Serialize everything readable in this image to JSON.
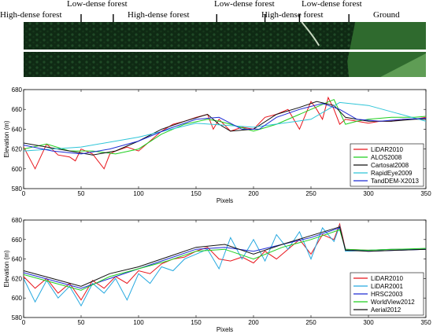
{
  "strip": {
    "labels": [
      {
        "text": "High-dense forest",
        "x": 0
      },
      {
        "text": "Low-dense forest",
        "x": 75
      },
      {
        "text": "High-dense forest",
        "x": 115
      },
      {
        "text": "Low-dense forest",
        "x": 168
      },
      {
        "text": "High-dense forest",
        "x": 218
      },
      {
        "text": "Low-dense forest",
        "x": 268
      },
      {
        "text": "Ground",
        "x": 300
      }
    ],
    "boundaries": [
      50,
      78,
      168,
      210,
      240,
      283
    ],
    "colors": {
      "forest": "#0f2a14",
      "forest_light": "#1f4a26",
      "ground": "#2f6a2e",
      "ground_light": "#5f9d55"
    }
  },
  "chart_data": [
    {
      "type": "line",
      "xlabel": "Pixels",
      "ylabel": "Elevation (m)",
      "xlim": [
        0,
        350
      ],
      "ylim": [
        580,
        680
      ],
      "xticks": [
        0,
        50,
        100,
        150,
        200,
        250,
        300,
        350
      ],
      "yticks": [
        580,
        600,
        620,
        640,
        660,
        680
      ],
      "legend": "bottom-right",
      "series": [
        {
          "name": "LiDAR2010",
          "color": "#e8141b",
          "x": [
            0,
            10,
            20,
            30,
            40,
            45,
            50,
            60,
            70,
            75,
            80,
            90,
            100,
            110,
            120,
            130,
            140,
            150,
            160,
            165,
            170,
            180,
            190,
            200,
            210,
            220,
            230,
            240,
            250,
            255,
            260,
            265,
            270,
            275,
            280,
            290,
            300,
            310,
            320,
            330,
            340,
            350
          ],
          "y": [
            622,
            600,
            625,
            614,
            612,
            608,
            620,
            615,
            600,
            615,
            618,
            622,
            618,
            628,
            638,
            645,
            648,
            652,
            655,
            640,
            650,
            638,
            642,
            640,
            652,
            655,
            660,
            640,
            668,
            660,
            650,
            672,
            660,
            645,
            650,
            648,
            646,
            648,
            648,
            650,
            650,
            652
          ]
        },
        {
          "name": "ALOS2008",
          "color": "#1fcf1f",
          "x": [
            0,
            20,
            40,
            60,
            80,
            100,
            120,
            140,
            160,
            170,
            180,
            200,
            220,
            240,
            260,
            270,
            280,
            290,
            300,
            320,
            340,
            350
          ],
          "y": [
            620,
            625,
            618,
            618,
            615,
            620,
            635,
            645,
            650,
            648,
            645,
            638,
            645,
            655,
            665,
            670,
            645,
            648,
            650,
            652,
            652,
            653
          ]
        },
        {
          "name": "Cartosat2008",
          "color": "#111111",
          "x": [
            0,
            20,
            40,
            60,
            80,
            100,
            120,
            140,
            160,
            170,
            180,
            200,
            220,
            240,
            255,
            270,
            280,
            300,
            320,
            340,
            350
          ],
          "y": [
            626,
            622,
            618,
            614,
            618,
            628,
            640,
            648,
            655,
            645,
            638,
            640,
            655,
            662,
            668,
            664,
            652,
            648,
            648,
            650,
            650
          ]
        },
        {
          "name": "RapidEye2009",
          "color": "#2ec5d8",
          "x": [
            0,
            50,
            100,
            150,
            200,
            250,
            275,
            300,
            325,
            350
          ],
          "y": [
            618,
            622,
            632,
            646,
            642,
            650,
            667,
            664,
            656,
            648
          ]
        },
        {
          "name": "TandDEM-X2013",
          "color": "#1d2bd4",
          "x": [
            0,
            25,
            50,
            75,
            100,
            125,
            150,
            170,
            190,
            205,
            220,
            240,
            260,
            275,
            290,
            310,
            330,
            350
          ],
          "y": [
            624,
            618,
            615,
            620,
            628,
            640,
            650,
            652,
            640,
            640,
            652,
            660,
            666,
            660,
            650,
            648,
            650,
            651
          ]
        }
      ]
    },
    {
      "type": "line",
      "xlabel": "Pixels",
      "ylabel": "Elevation (m)",
      "xlim": [
        0,
        350
      ],
      "ylim": [
        580,
        680
      ],
      "xticks": [
        0,
        50,
        100,
        150,
        200,
        250,
        300,
        350
      ],
      "yticks": [
        580,
        600,
        620,
        640,
        660,
        680
      ],
      "legend": "bottom-right",
      "series": [
        {
          "name": "LiDAR2010",
          "color": "#e8141b",
          "x": [
            0,
            10,
            20,
            30,
            40,
            50,
            60,
            70,
            80,
            90,
            100,
            110,
            120,
            130,
            140,
            150,
            160,
            170,
            180,
            190,
            200,
            210,
            220,
            230,
            240,
            250,
            260,
            270,
            275,
            280,
            300,
            320,
            350
          ],
          "y": [
            622,
            610,
            620,
            605,
            615,
            598,
            618,
            610,
            622,
            615,
            628,
            625,
            635,
            640,
            642,
            648,
            652,
            640,
            638,
            642,
            636,
            648,
            640,
            650,
            660,
            645,
            665,
            660,
            676,
            650,
            649,
            650,
            650
          ]
        },
        {
          "name": "LiDAR2001",
          "color": "#26a9e0",
          "x": [
            0,
            10,
            20,
            30,
            40,
            50,
            60,
            70,
            80,
            90,
            100,
            110,
            120,
            130,
            140,
            150,
            160,
            170,
            180,
            190,
            200,
            210,
            220,
            230,
            240,
            250,
            260,
            270,
            275,
            280,
            300,
            320,
            350
          ],
          "y": [
            620,
            596,
            618,
            600,
            612,
            592,
            615,
            605,
            620,
            598,
            625,
            615,
            632,
            628,
            640,
            645,
            650,
            630,
            662,
            640,
            660,
            638,
            665,
            650,
            668,
            640,
            672,
            658,
            674,
            648,
            649,
            650,
            650
          ]
        },
        {
          "name": "HRSC2003",
          "color": "#1d2bd4",
          "x": [
            0,
            25,
            50,
            75,
            100,
            125,
            150,
            175,
            200,
            225,
            250,
            275,
            280,
            300,
            350
          ],
          "y": [
            626,
            618,
            610,
            620,
            630,
            640,
            650,
            652,
            648,
            655,
            662,
            672,
            650,
            648,
            650
          ]
        },
        {
          "name": "WorldView2012",
          "color": "#1fcf1f",
          "x": [
            0,
            25,
            50,
            75,
            100,
            125,
            150,
            175,
            200,
            225,
            250,
            275,
            280,
            300,
            350
          ],
          "y": [
            624,
            616,
            608,
            622,
            630,
            638,
            648,
            650,
            640,
            652,
            660,
            670,
            650,
            649,
            651
          ]
        },
        {
          "name": "Aerial2012",
          "color": "#111111",
          "x": [
            0,
            25,
            50,
            75,
            100,
            125,
            150,
            175,
            200,
            225,
            250,
            275,
            280,
            300,
            350
          ],
          "y": [
            628,
            620,
            612,
            625,
            632,
            642,
            652,
            655,
            645,
            655,
            664,
            673,
            649,
            648,
            650
          ]
        }
      ]
    }
  ]
}
